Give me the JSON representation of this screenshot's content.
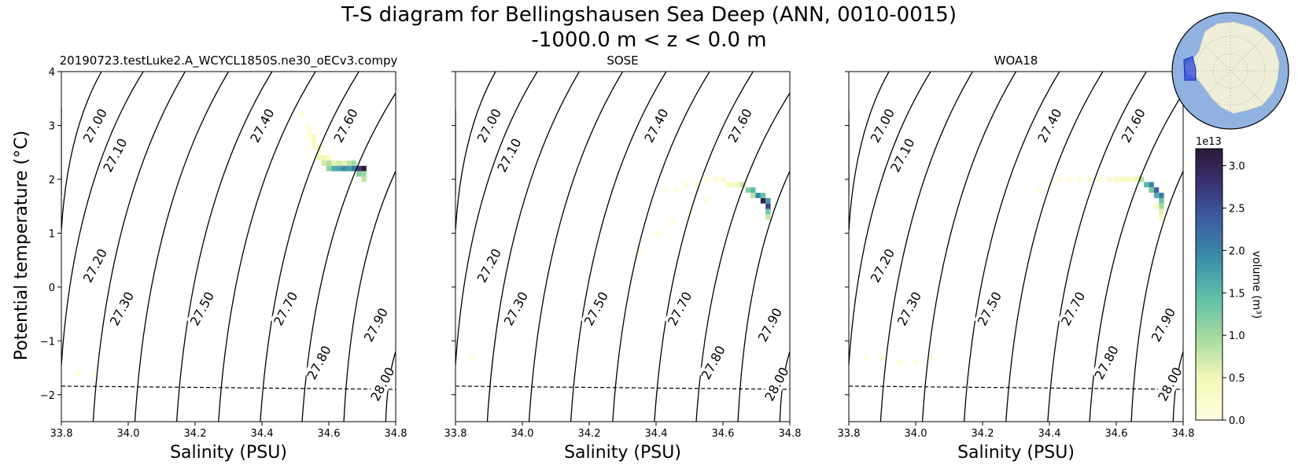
{
  "chart_data": {
    "type": "heatmap",
    "title_line1": "T-S diagram for Bellingshausen Sea Deep (ANN, 0010-0015)",
    "title_line2": "-1000.0 m < z < 0.0 m",
    "xlabel": "Salinity (PSU)",
    "ylabel": "Potential temperature (°C)",
    "xlim": [
      33.8,
      34.8
    ],
    "ylim": [
      -2.5,
      4.0
    ],
    "xticks": [
      "33.8",
      "34.0",
      "34.2",
      "34.4",
      "34.6",
      "34.8"
    ],
    "yticks": [
      "−2",
      "−1",
      "0",
      "1",
      "2",
      "3",
      "4"
    ],
    "freezing_line": {
      "s": [
        33.8,
        34.8
      ],
      "t": [
        -1.84,
        -1.9
      ]
    },
    "density_contours": [
      {
        "label": "27.00",
        "top_s": 33.8,
        "top_t": 3.3,
        "bottom_s": 33.8,
        "bottom_t": 1.7
      },
      {
        "label": "27.10",
        "top_s": 33.92,
        "top_t": 4.0,
        "bottom_s": 33.8,
        "bottom_t": 1.05
      },
      {
        "label": "27.20",
        "top_s": 34.045,
        "top_t": 4.0,
        "bottom_s": 33.8,
        "bottom_t": -1.45
      },
      {
        "label": "27.30",
        "top_s": 34.17,
        "top_t": 4.0,
        "bottom_s": 33.895,
        "bottom_t": -2.5
      },
      {
        "label": "27.40",
        "top_s": 34.3,
        "top_t": 4.0,
        "bottom_s": 34.02,
        "bottom_t": -2.5
      },
      {
        "label": "27.50",
        "top_s": 34.43,
        "top_t": 4.0,
        "bottom_s": 34.145,
        "bottom_t": -2.5
      },
      {
        "label": "27.60",
        "top_s": 34.56,
        "top_t": 4.0,
        "bottom_s": 34.27,
        "bottom_t": -2.5
      },
      {
        "label": "27.70",
        "top_s": 34.69,
        "top_t": 4.0,
        "bottom_s": 34.395,
        "bottom_t": -2.5
      },
      {
        "label": "27.80",
        "top_s": 34.8,
        "top_t": 3.6,
        "bottom_s": 34.52,
        "bottom_t": -2.5
      },
      {
        "label": "27.90",
        "top_s": 34.8,
        "top_t": 2.15,
        "bottom_s": 34.645,
        "bottom_t": -2.5
      },
      {
        "label": "28.00",
        "top_s": 34.8,
        "top_t": -1.2,
        "bottom_s": 34.77,
        "bottom_t": -2.5
      }
    ],
    "density_labels": [
      {
        "label": "27.00",
        "s": 33.9,
        "t": 3.0
      },
      {
        "label": "27.10",
        "s": 33.96,
        "t": 2.45
      },
      {
        "label": "27.20",
        "s": 33.9,
        "t": 0.4
      },
      {
        "label": "27.30",
        "s": 33.98,
        "t": -0.4
      },
      {
        "label": "27.50",
        "s": 34.22,
        "t": -0.4
      },
      {
        "label": "27.40",
        "s": 34.4,
        "t": 3.0
      },
      {
        "label": "27.60",
        "s": 34.65,
        "t": 3.0
      },
      {
        "label": "27.70",
        "s": 34.47,
        "t": -0.4
      },
      {
        "label": "27.80",
        "s": 34.57,
        "t": -1.4
      },
      {
        "label": "27.90",
        "s": 34.74,
        "t": -0.7
      },
      {
        "label": "28.00",
        "s": 34.76,
        "t": -1.8
      }
    ],
    "colorbar": {
      "label": "volume (m³)",
      "exponent": "1e13",
      "ticks": [
        "0.0",
        "0.5",
        "1.0",
        "1.5",
        "2.0",
        "2.5",
        "3.0"
      ],
      "min": 0,
      "max": 3.2
    },
    "panels": [
      {
        "title": "20190723.testLuke2.A_WCYCL1850S.ne30_oECv3.compy",
        "cells": [
          {
            "s": 34.54,
            "t": 3.0,
            "v": 0.05
          },
          {
            "s": 34.54,
            "t": 2.9,
            "v": 0.1
          },
          {
            "s": 34.54,
            "t": 2.8,
            "v": 0.15
          },
          {
            "s": 34.555,
            "t": 2.8,
            "v": 0.25
          },
          {
            "s": 34.555,
            "t": 2.7,
            "v": 0.3
          },
          {
            "s": 34.555,
            "t": 2.6,
            "v": 0.3
          },
          {
            "s": 34.57,
            "t": 2.6,
            "v": 0.25
          },
          {
            "s": 34.57,
            "t": 2.5,
            "v": 0.35
          },
          {
            "s": 34.57,
            "t": 2.4,
            "v": 0.5
          },
          {
            "s": 34.585,
            "t": 2.4,
            "v": 0.5
          },
          {
            "s": 34.585,
            "t": 2.3,
            "v": 0.7
          },
          {
            "s": 34.6,
            "t": 2.4,
            "v": 0.3
          },
          {
            "s": 34.6,
            "t": 2.3,
            "v": 0.9
          },
          {
            "s": 34.6,
            "t": 2.2,
            "v": 1.1
          },
          {
            "s": 34.615,
            "t": 2.3,
            "v": 0.6
          },
          {
            "s": 34.615,
            "t": 2.2,
            "v": 1.6
          },
          {
            "s": 34.63,
            "t": 2.3,
            "v": 0.7
          },
          {
            "s": 34.63,
            "t": 2.2,
            "v": 1.7
          },
          {
            "s": 34.645,
            "t": 2.3,
            "v": 0.6
          },
          {
            "s": 34.645,
            "t": 2.2,
            "v": 1.9
          },
          {
            "s": 34.66,
            "t": 2.3,
            "v": 0.8
          },
          {
            "s": 34.66,
            "t": 2.2,
            "v": 1.8
          },
          {
            "s": 34.675,
            "t": 2.3,
            "v": 1.0
          },
          {
            "s": 34.675,
            "t": 2.2,
            "v": 2.1
          },
          {
            "s": 34.69,
            "t": 2.2,
            "v": 2.7
          },
          {
            "s": 34.69,
            "t": 2.1,
            "v": 1.2
          },
          {
            "s": 34.705,
            "t": 2.2,
            "v": 3.2
          },
          {
            "s": 34.705,
            "t": 2.1,
            "v": 1.0
          },
          {
            "s": 34.705,
            "t": 2.0,
            "v": 0.8
          },
          {
            "s": 34.52,
            "t": 3.2,
            "v": 0.05
          },
          {
            "s": 33.85,
            "t": -1.6,
            "v": 0.03
          },
          {
            "s": 33.9,
            "t": -1.6,
            "v": 0.02
          }
        ]
      },
      {
        "title": "SOSE",
        "cells": [
          {
            "s": 34.43,
            "t": 1.8,
            "v": 0.03
          },
          {
            "s": 34.46,
            "t": 1.8,
            "v": 0.05
          },
          {
            "s": 34.49,
            "t": 1.9,
            "v": 0.05
          },
          {
            "s": 34.52,
            "t": 1.9,
            "v": 0.08
          },
          {
            "s": 34.55,
            "t": 2.0,
            "v": 0.1
          },
          {
            "s": 34.58,
            "t": 2.0,
            "v": 0.15
          },
          {
            "s": 34.6,
            "t": 2.0,
            "v": 0.2
          },
          {
            "s": 34.615,
            "t": 1.9,
            "v": 0.3
          },
          {
            "s": 34.63,
            "t": 1.9,
            "v": 0.4
          },
          {
            "s": 34.645,
            "t": 1.9,
            "v": 0.5
          },
          {
            "s": 34.66,
            "t": 1.9,
            "v": 0.8
          },
          {
            "s": 34.675,
            "t": 1.8,
            "v": 1.2
          },
          {
            "s": 34.69,
            "t": 1.8,
            "v": 1.5
          },
          {
            "s": 34.69,
            "t": 1.7,
            "v": 0.9
          },
          {
            "s": 34.705,
            "t": 1.7,
            "v": 2.0
          },
          {
            "s": 34.72,
            "t": 1.7,
            "v": 1.4
          },
          {
            "s": 34.72,
            "t": 1.6,
            "v": 3.0
          },
          {
            "s": 34.735,
            "t": 1.6,
            "v": 1.8
          },
          {
            "s": 34.735,
            "t": 1.5,
            "v": 2.6
          },
          {
            "s": 34.735,
            "t": 1.4,
            "v": 1.3
          },
          {
            "s": 34.735,
            "t": 1.3,
            "v": 0.8
          },
          {
            "s": 34.55,
            "t": 1.6,
            "v": 0.04
          },
          {
            "s": 34.5,
            "t": 1.4,
            "v": 0.03
          },
          {
            "s": 34.45,
            "t": 1.2,
            "v": 0.03
          },
          {
            "s": 34.4,
            "t": 1.0,
            "v": 0.02
          },
          {
            "s": 34.35,
            "t": 0.7,
            "v": 0.02
          },
          {
            "s": 33.85,
            "t": -1.3,
            "v": 0.02
          }
        ]
      },
      {
        "title": "WOA18",
        "cells": [
          {
            "s": 34.37,
            "t": 1.8,
            "v": 0.03
          },
          {
            "s": 34.4,
            "t": 1.9,
            "v": 0.05
          },
          {
            "s": 34.43,
            "t": 2.0,
            "v": 0.05
          },
          {
            "s": 34.46,
            "t": 2.0,
            "v": 0.06
          },
          {
            "s": 34.49,
            "t": 2.0,
            "v": 0.08
          },
          {
            "s": 34.52,
            "t": 2.0,
            "v": 0.1
          },
          {
            "s": 34.55,
            "t": 2.0,
            "v": 0.15
          },
          {
            "s": 34.58,
            "t": 2.0,
            "v": 0.2
          },
          {
            "s": 34.6,
            "t": 2.0,
            "v": 0.25
          },
          {
            "s": 34.615,
            "t": 2.0,
            "v": 0.3
          },
          {
            "s": 34.63,
            "t": 2.0,
            "v": 0.35
          },
          {
            "s": 34.645,
            "t": 2.0,
            "v": 0.35
          },
          {
            "s": 34.66,
            "t": 2.0,
            "v": 0.5
          },
          {
            "s": 34.675,
            "t": 2.0,
            "v": 0.9
          },
          {
            "s": 34.69,
            "t": 1.9,
            "v": 1.5
          },
          {
            "s": 34.705,
            "t": 1.9,
            "v": 2.0
          },
          {
            "s": 34.705,
            "t": 1.8,
            "v": 1.3
          },
          {
            "s": 34.72,
            "t": 1.8,
            "v": 2.3
          },
          {
            "s": 34.72,
            "t": 1.7,
            "v": 1.6
          },
          {
            "s": 34.735,
            "t": 1.7,
            "v": 2.1
          },
          {
            "s": 34.735,
            "t": 1.6,
            "v": 1.4
          },
          {
            "s": 34.735,
            "t": 1.5,
            "v": 1.0
          },
          {
            "s": 34.735,
            "t": 1.4,
            "v": 0.6
          },
          {
            "s": 34.735,
            "t": 1.3,
            "v": 0.3
          },
          {
            "s": 34.72,
            "t": 1.5,
            "v": 0.4
          },
          {
            "s": 33.85,
            "t": -1.3,
            "v": 0.03
          },
          {
            "s": 33.9,
            "t": -1.3,
            "v": 0.03
          },
          {
            "s": 33.95,
            "t": -1.4,
            "v": 0.02
          },
          {
            "s": 34.0,
            "t": -1.4,
            "v": 0.02
          },
          {
            "s": 34.05,
            "t": -1.3,
            "v": 0.02
          }
        ]
      }
    ]
  }
}
